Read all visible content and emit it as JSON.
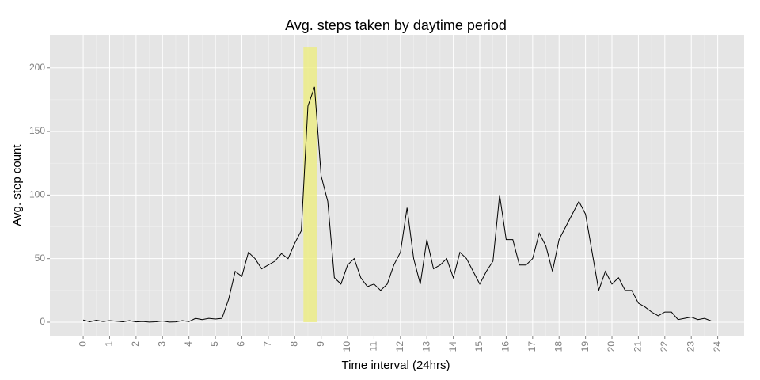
{
  "chart_data": {
    "type": "line",
    "title": "Avg. steps taken by daytime period",
    "x_label": "Time interval (24hrs)",
    "y_label": "Avg. step count",
    "x": [
      0,
      0.25,
      0.5,
      0.75,
      1,
      1.25,
      1.5,
      1.75,
      2,
      2.25,
      2.5,
      2.75,
      3,
      3.25,
      3.5,
      3.75,
      4,
      4.25,
      4.5,
      4.75,
      5,
      5.25,
      5.5,
      5.75,
      6,
      6.25,
      6.5,
      6.75,
      7,
      7.25,
      7.5,
      7.75,
      8,
      8.25,
      8.5,
      8.75,
      9,
      9.25,
      9.5,
      9.75,
      10,
      10.25,
      10.5,
      10.75,
      11,
      11.25,
      11.5,
      11.75,
      12,
      12.25,
      12.5,
      12.75,
      13,
      13.25,
      13.5,
      13.75,
      14,
      14.25,
      14.5,
      14.75,
      15,
      15.25,
      15.5,
      15.75,
      16,
      16.25,
      16.5,
      16.75,
      17,
      17.25,
      17.5,
      17.75,
      18,
      18.25,
      18.5,
      18.75,
      19,
      19.25,
      19.5,
      19.75,
      20,
      20.25,
      20.5,
      20.75,
      21,
      21.25,
      21.5,
      21.75,
      22,
      22.25,
      22.5,
      22.75,
      23,
      23.25,
      23.5,
      23.75
    ],
    "series": [
      {
        "name": "Avg. steps",
        "color": "#000000",
        "values": [
          1.7,
          0.3,
          1.5,
          0.5,
          1.2,
          0.8,
          0.3,
          1.2,
          0.2,
          0.5,
          0.1,
          0.3,
          0.9,
          0.1,
          0.2,
          1.2,
          0.5,
          3,
          2,
          3,
          2.5,
          3,
          18,
          40,
          36,
          55,
          50,
          42,
          45,
          48,
          54,
          50,
          62,
          72,
          170,
          185,
          115,
          95,
          35,
          30,
          45,
          50,
          35,
          28,
          30,
          25,
          30,
          45,
          55,
          90,
          50,
          30,
          65,
          42,
          45,
          50,
          35,
          55,
          50,
          40,
          30,
          40,
          48,
          100,
          65,
          65,
          45,
          45,
          50,
          70,
          60,
          40,
          65,
          75,
          85,
          95,
          85,
          55,
          25,
          40,
          30,
          35,
          25,
          25,
          15,
          12,
          8,
          5,
          8,
          8,
          2,
          3,
          4,
          2,
          3,
          1
        ]
      }
    ],
    "highlight": {
      "xmin": 8.33,
      "xmax": 8.83,
      "ymin": 0,
      "ymax": 216,
      "color": "#ecec7a"
    },
    "xlim": [
      -1.26,
      25
    ],
    "ylim": [
      -10.6,
      226
    ],
    "xticks": [
      0,
      1,
      2,
      3,
      4,
      5,
      6,
      7,
      8,
      9,
      10,
      11,
      12,
      13,
      14,
      15,
      16,
      17,
      18,
      19,
      20,
      21,
      22,
      23,
      24
    ],
    "yticks": [
      0,
      50,
      100,
      150,
      200
    ],
    "grid": true
  }
}
